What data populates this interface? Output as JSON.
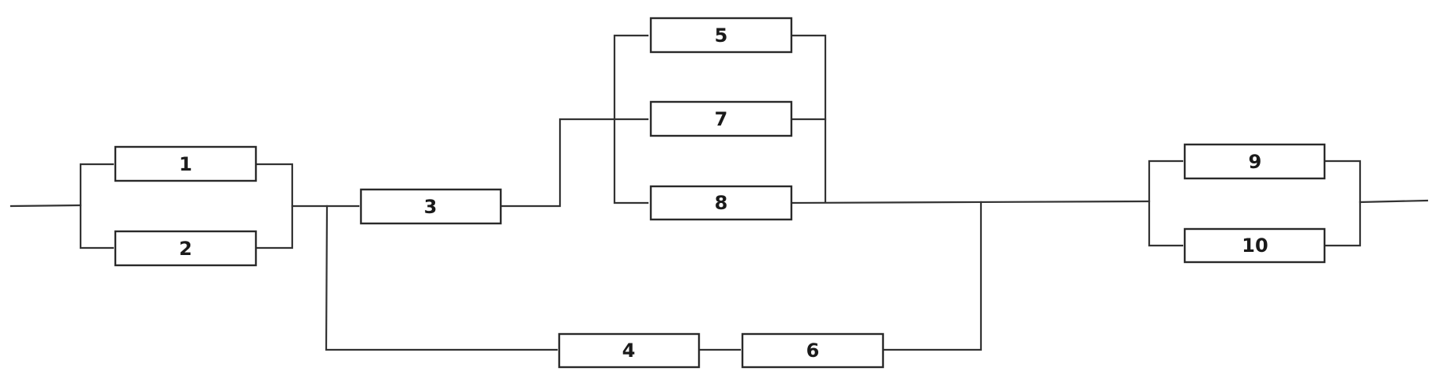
{
  "diagram": {
    "blocks": [
      {
        "id": "b1",
        "label": "1"
      },
      {
        "id": "b2",
        "label": "2"
      },
      {
        "id": "b3",
        "label": "3"
      },
      {
        "id": "b4",
        "label": "4"
      },
      {
        "id": "b5",
        "label": "5"
      },
      {
        "id": "b6",
        "label": "6"
      },
      {
        "id": "b7",
        "label": "7"
      },
      {
        "id": "b8",
        "label": "8"
      },
      {
        "id": "b9",
        "label": "9"
      },
      {
        "id": "b10",
        "label": "10"
      }
    ],
    "connections": [
      {
        "from": "input",
        "to": "b1"
      },
      {
        "from": "input",
        "to": "b2"
      },
      {
        "from": "b1",
        "to": "b3"
      },
      {
        "from": "b2",
        "to": "b3"
      },
      {
        "from": "b1",
        "to": "b4"
      },
      {
        "from": "b2",
        "to": "b4"
      },
      {
        "from": "b3",
        "to": "b5"
      },
      {
        "from": "b3",
        "to": "b7"
      },
      {
        "from": "b3",
        "to": "b8"
      },
      {
        "from": "b4",
        "to": "b6"
      },
      {
        "from": "b5",
        "to": "b9"
      },
      {
        "from": "b7",
        "to": "b9"
      },
      {
        "from": "b8",
        "to": "b9"
      },
      {
        "from": "b6",
        "to": "b9"
      },
      {
        "from": "b5",
        "to": "b10"
      },
      {
        "from": "b7",
        "to": "b10"
      },
      {
        "from": "b8",
        "to": "b10"
      },
      {
        "from": "b6",
        "to": "b10"
      },
      {
        "from": "b9",
        "to": "output"
      },
      {
        "from": "b10",
        "to": "output"
      }
    ]
  }
}
